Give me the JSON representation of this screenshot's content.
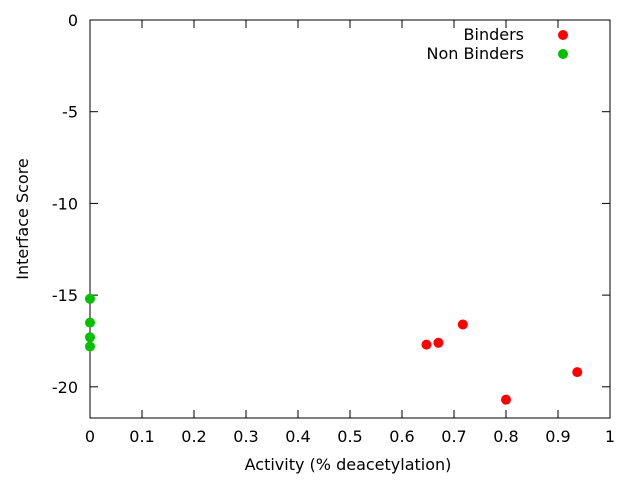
{
  "chart_data": {
    "type": "scatter",
    "title": "",
    "xlabel": "Activity (% deacetylation)",
    "ylabel": "Interface Score",
    "xlim": [
      0,
      1
    ],
    "ylim": [
      -21.7,
      0
    ],
    "xticks": [
      0,
      0.1,
      0.2,
      0.3,
      0.4,
      0.5,
      0.6,
      0.7,
      0.8,
      0.9,
      1
    ],
    "xtick_labels": [
      "0",
      "0.1",
      "0.2",
      "0.3",
      "0.4",
      "0.5",
      "0.6",
      "0.7",
      "0.8",
      "0.9",
      "1"
    ],
    "yticks": [
      0,
      -5,
      -10,
      -15,
      -20
    ],
    "ytick_labels": [
      "0",
      "-5",
      "-10",
      "-15",
      "-20"
    ],
    "grid": false,
    "legend_position": "top-right",
    "series": [
      {
        "name": "Binders",
        "color": "#ff0000",
        "points": [
          {
            "x": 0.647,
            "y": -17.7
          },
          {
            "x": 0.67,
            "y": -17.6
          },
          {
            "x": 0.717,
            "y": -16.6
          },
          {
            "x": 0.8,
            "y": -20.7
          },
          {
            "x": 0.937,
            "y": -19.2
          }
        ]
      },
      {
        "name": "Non Binders",
        "color": "#00c000",
        "points": [
          {
            "x": 0.0,
            "y": -15.2
          },
          {
            "x": 0.0,
            "y": -16.5
          },
          {
            "x": 0.0,
            "y": -17.3
          },
          {
            "x": 0.0,
            "y": -17.8
          }
        ]
      }
    ]
  }
}
